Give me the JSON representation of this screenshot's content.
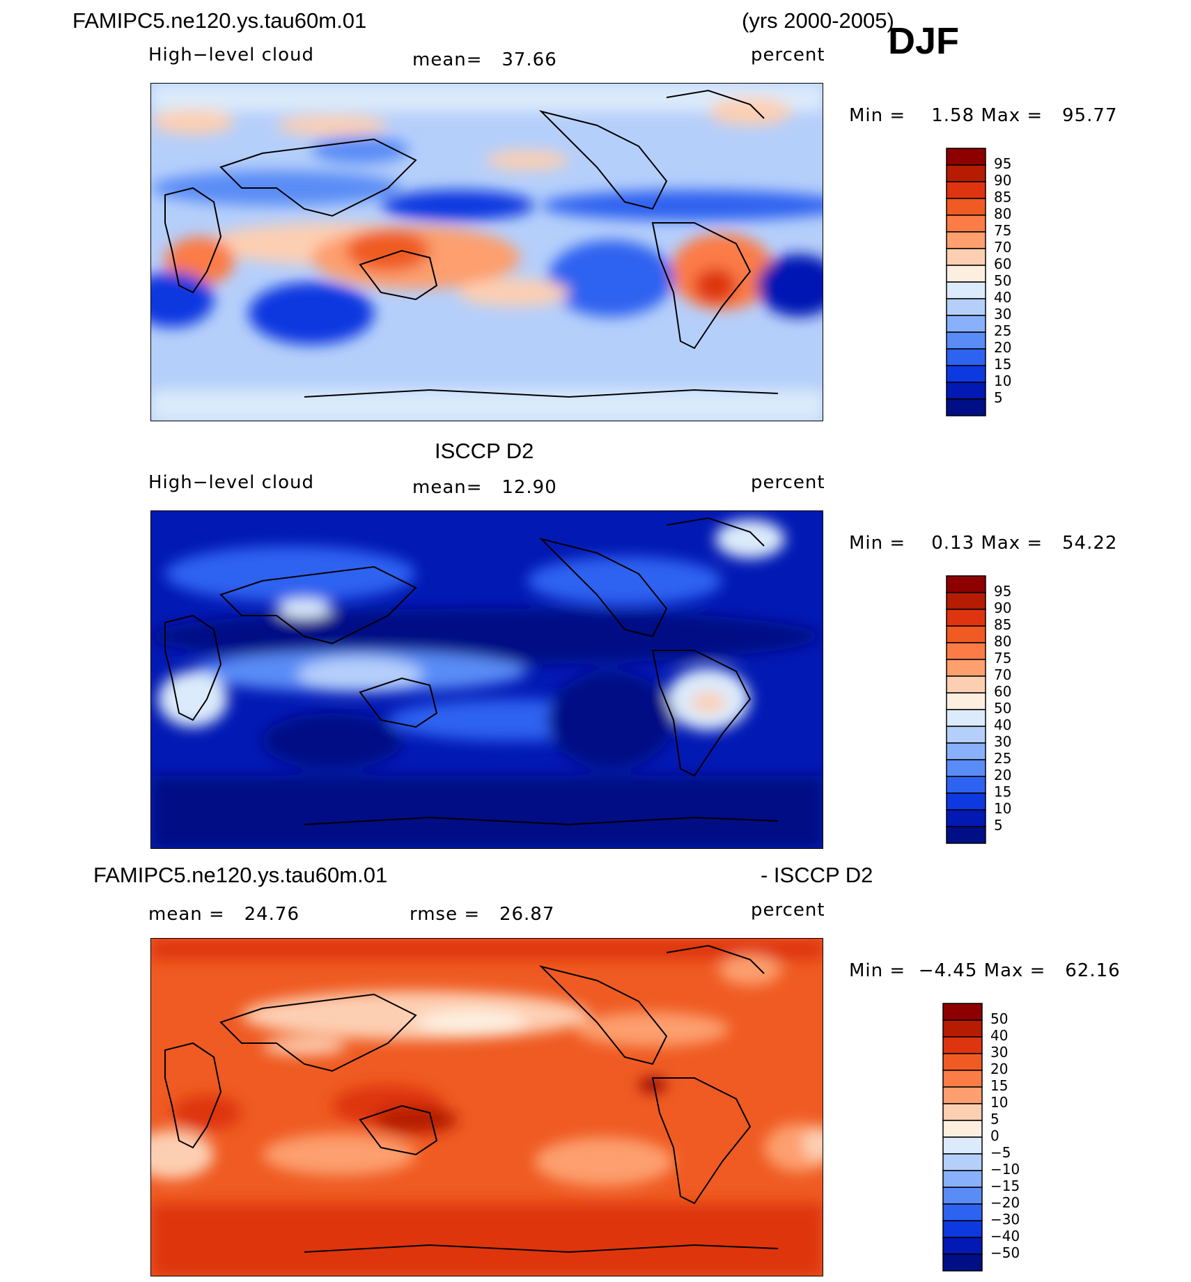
{
  "header": {
    "model_name": "FAMIPC5.ne120.ys.tau60m.01",
    "years": "(yrs 2000-2005)",
    "season": "DJF"
  },
  "chart_data": [
    {
      "type": "heatmap",
      "panel": "model",
      "variable_label": "High−level cloud",
      "mean_text": "mean=   37.66",
      "units": "percent",
      "minmax_text": "Min =    1.58 Max =   95.77",
      "colorbar_levels": [
        "95",
        "90",
        "85",
        "80",
        "75",
        "70",
        "60",
        "50",
        "40",
        "30",
        "25",
        "20",
        "15",
        "10",
        "5"
      ],
      "colorbar_colors": [
        "#8e0000",
        "#b51c02",
        "#de3510",
        "#ef5b22",
        "#fb7c46",
        "#fd9f6e",
        "#fdcfb2",
        "#fdefe0",
        "#dcebfb",
        "#b5cffb",
        "#89b0fb",
        "#5a8cf6",
        "#2e62f0",
        "#0c39e0",
        "#0219b4",
        "#000f85"
      ],
      "mean": 37.66,
      "min": 1.58,
      "max": 95.77
    },
    {
      "type": "heatmap",
      "panel": "observations",
      "dataset_title": "ISCCP D2",
      "variable_label": "High−level cloud",
      "mean_text": "mean=   12.90",
      "units": "percent",
      "minmax_text": "Min =    0.13 Max =   54.22",
      "colorbar_levels": [
        "95",
        "90",
        "85",
        "80",
        "75",
        "70",
        "60",
        "50",
        "40",
        "30",
        "25",
        "20",
        "15",
        "10",
        "5"
      ],
      "colorbar_colors": [
        "#8e0000",
        "#b51c02",
        "#de3510",
        "#ef5b22",
        "#fb7c46",
        "#fd9f6e",
        "#fdcfb2",
        "#fdefe0",
        "#dcebfb",
        "#b5cffb",
        "#89b0fb",
        "#5a8cf6",
        "#2e62f0",
        "#0c39e0",
        "#0219b4",
        "#000f85"
      ],
      "mean": 12.9,
      "min": 0.13,
      "max": 54.22
    },
    {
      "type": "heatmap",
      "panel": "difference",
      "title_left": "FAMIPC5.ne120.ys.tau60m.01",
      "title_right": "- ISCCP D2",
      "mean_text": "mean =   24.76",
      "rmse_text": "rmse =   26.87",
      "units": "percent",
      "minmax_text": "Min =  −4.45 Max =   62.16",
      "colorbar_levels": [
        "50",
        "40",
        "30",
        "20",
        "15",
        "10",
        "5",
        "0",
        "−5",
        "−10",
        "−15",
        "−20",
        "−30",
        "−40",
        "−50"
      ],
      "colorbar_colors": [
        "#8e0000",
        "#b51c02",
        "#de3510",
        "#ef5b22",
        "#fb7c46",
        "#fd9f6e",
        "#fdcfb2",
        "#fdefe0",
        "#dcebfb",
        "#b5cffb",
        "#89b0fb",
        "#5a8cf6",
        "#2e62f0",
        "#0c39e0",
        "#0219b4",
        "#000f85"
      ],
      "mean": 24.76,
      "rmse": 26.87,
      "min": -4.45,
      "max": 62.16
    }
  ]
}
